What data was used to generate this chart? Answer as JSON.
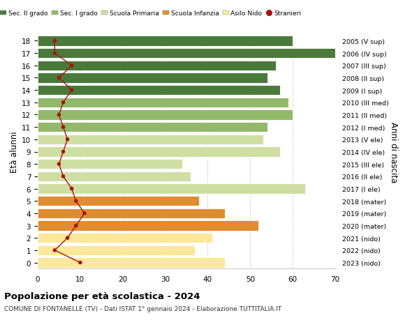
{
  "ages": [
    0,
    1,
    2,
    3,
    4,
    5,
    6,
    7,
    8,
    9,
    10,
    11,
    12,
    13,
    14,
    15,
    16,
    17,
    18
  ],
  "bar_values": [
    44,
    37,
    41,
    52,
    44,
    38,
    63,
    36,
    34,
    57,
    53,
    54,
    60,
    59,
    57,
    54,
    56,
    70,
    60
  ],
  "stranieri": [
    10,
    4,
    7,
    9,
    11,
    9,
    8,
    6,
    5,
    6,
    7,
    6,
    5,
    6,
    8,
    5,
    8,
    4,
    4
  ],
  "bar_colors": [
    "#fce89a",
    "#fce89a",
    "#fce89a",
    "#e08c30",
    "#e08c30",
    "#e08c30",
    "#cfdfa4",
    "#cfdfa4",
    "#cfdfa4",
    "#cfdfa4",
    "#cfdfa4",
    "#92b86a",
    "#92b86a",
    "#92b86a",
    "#4a7a3a",
    "#4a7a3a",
    "#4a7a3a",
    "#4a7a3a",
    "#4a7a3a"
  ],
  "right_labels": [
    "2023 (nido)",
    "2022 (nido)",
    "2021 (nido)",
    "2020 (mater)",
    "2019 (mater)",
    "2018 (mater)",
    "2017 (I ele)",
    "2016 (II ele)",
    "2015 (III ele)",
    "2014 (IV ele)",
    "2013 (V ele)",
    "2012 (I med)",
    "2011 (II med)",
    "2010 (III med)",
    "2009 (I sup)",
    "2008 (II sup)",
    "2007 (III sup)",
    "2006 (IV sup)",
    "2005 (V sup)"
  ],
  "legend_labels": [
    "Sec. II grado",
    "Sec. I grado",
    "Scuola Primaria",
    "Scuola Infanzia",
    "Asilo Nido",
    "Stranieri"
  ],
  "legend_colors": [
    "#4a7a3a",
    "#92b86a",
    "#cfdfa4",
    "#e08c30",
    "#fce89a",
    "#aa1111"
  ],
  "ylabel": "Età alunni",
  "right_ylabel": "Anni di nascita",
  "title": "Popolazione per età scolastica - 2024",
  "subtitle": "COMUNE DI FONTANELLE (TV) - Dati ISTAT 1° gennaio 2024 - Elaborazione TUTTITALIA.IT",
  "xlim": [
    0,
    70
  ],
  "xticks": [
    0,
    10,
    20,
    30,
    40,
    50,
    60,
    70
  ],
  "line_color": "#aa1111",
  "background_color": "#ffffff",
  "grid_color": "#cccccc"
}
